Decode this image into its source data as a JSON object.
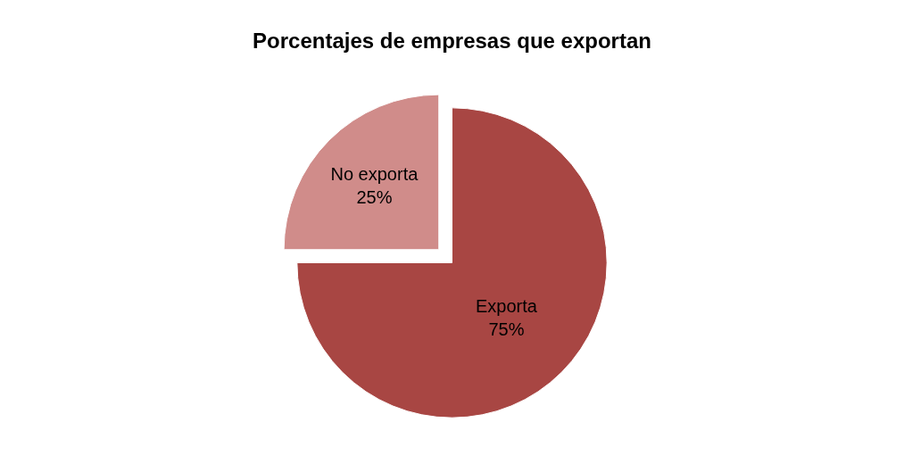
{
  "chart_data": {
    "type": "pie",
    "title": "Porcentajes de empresas que exportan",
    "categories": [
      "Exporta",
      "No exporta"
    ],
    "values": [
      75,
      25
    ],
    "value_labels": [
      "75%",
      "25%"
    ],
    "colors": [
      "#a84643",
      "#d08c8a"
    ],
    "legend": false
  }
}
